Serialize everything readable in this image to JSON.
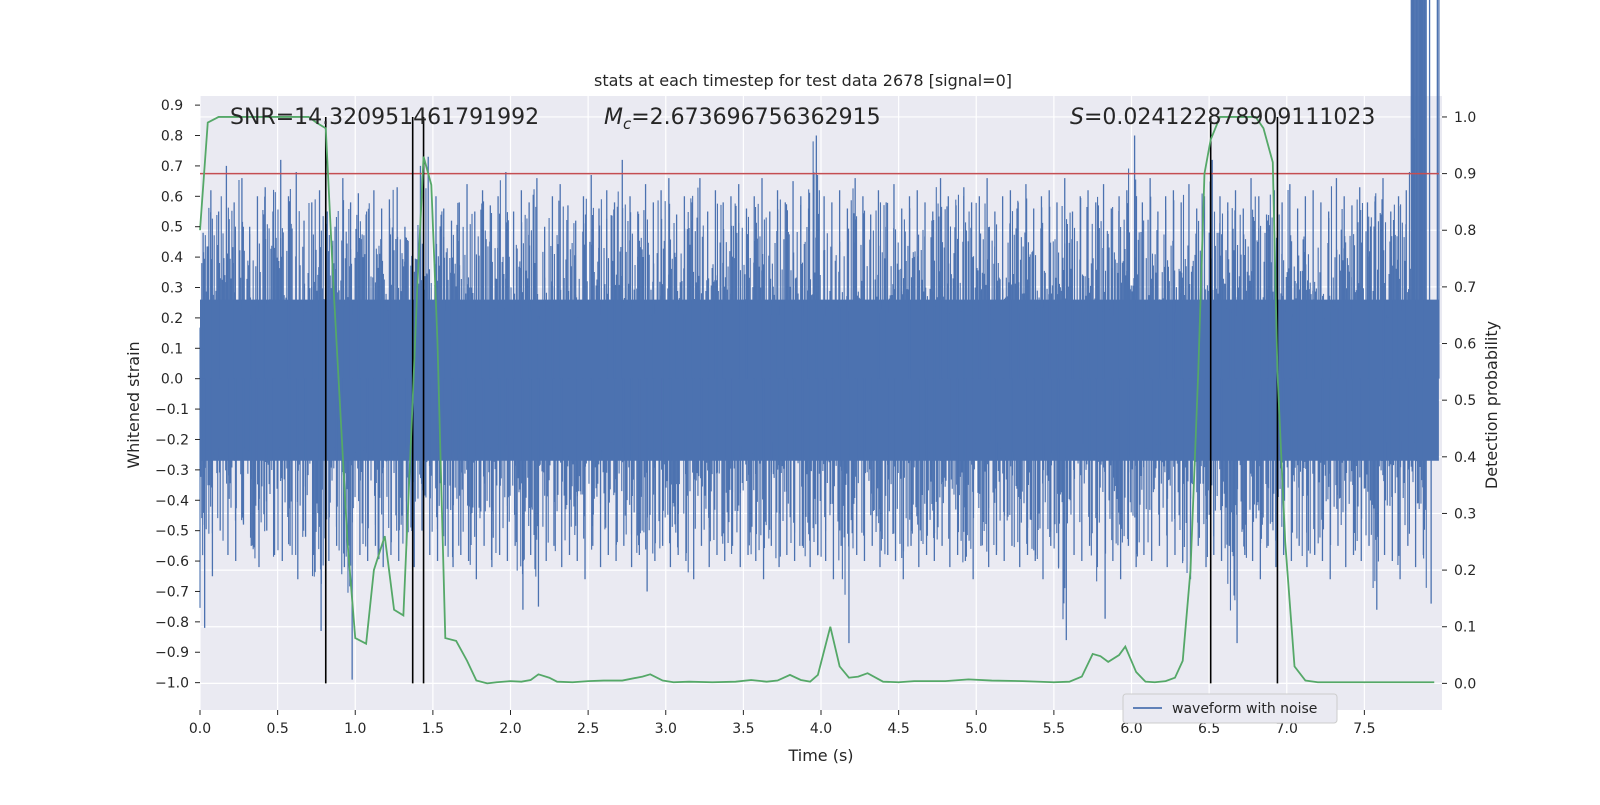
{
  "chart_data": {
    "type": "line",
    "title": "stats at each timestep for test data 2678 [signal=0]",
    "xlabel": "Time (s)",
    "ylabel": "Whitened strain",
    "y2label": "Detection probability",
    "xlim": [
      0.0,
      8.0
    ],
    "ylim": [
      -1.09,
      0.93
    ],
    "y2lim": [
      -0.047,
      1.037
    ],
    "xticks": [
      "0.0",
      "0.5",
      "1.0",
      "1.5",
      "2.0",
      "2.5",
      "3.0",
      "3.5",
      "4.0",
      "4.5",
      "5.0",
      "5.5",
      "6.0",
      "6.5",
      "7.0",
      "7.5"
    ],
    "yticks": [
      "0.9",
      "0.8",
      "0.7",
      "0.6",
      "0.5",
      "0.4",
      "0.3",
      "0.2",
      "0.1",
      "0.0",
      "-0.1",
      "-0.2",
      "-0.3",
      "-0.4",
      "-0.5",
      "-0.6",
      "-0.7",
      "-0.8",
      "-0.9",
      "-1.0"
    ],
    "y2ticks": [
      "1.0",
      "0.9",
      "0.8",
      "0.7",
      "0.6",
      "0.5",
      "0.4",
      "0.3",
      "0.2",
      "0.1",
      "0.0"
    ],
    "grid": true,
    "annotations": {
      "snr": "SNR=14.320951461791992",
      "mc_symbol": "M",
      "mc_sub": "c",
      "mc_value": "=2.673696756362915",
      "s_symbol": "S",
      "s_value": "=0.024122878909111023"
    },
    "threshold": 0.9,
    "vlines": [
      0.81,
      1.37,
      1.44,
      6.51,
      6.94
    ],
    "series": [
      {
        "name": "waveform with noise",
        "color": "#4c72b0",
        "envelope_x": [
          0.0,
          0.05,
          0.1,
          0.15,
          0.2,
          0.25,
          0.3,
          0.35,
          0.4,
          0.45,
          0.5,
          0.55,
          0.6,
          0.65,
          0.7,
          0.75,
          0.8,
          0.85,
          0.9,
          0.95,
          1.0,
          1.05,
          1.1,
          1.15,
          1.2,
          1.25,
          1.3,
          1.35,
          1.4,
          1.45,
          1.5,
          1.55,
          1.6,
          1.65,
          1.7,
          1.75,
          1.8,
          1.85,
          1.9,
          1.95,
          2.0,
          2.05,
          2.1,
          2.15,
          2.2,
          2.25,
          2.3,
          2.35,
          2.4,
          2.45,
          2.5,
          2.55,
          2.6,
          2.65,
          2.7,
          2.75,
          2.8,
          2.85,
          2.9,
          2.95,
          3.0,
          3.05,
          3.1,
          3.15,
          3.2,
          3.25,
          3.3,
          3.35,
          3.4,
          3.45,
          3.5,
          3.55,
          3.6,
          3.65,
          3.7,
          3.75,
          3.8,
          3.85,
          3.9,
          3.95,
          4.0,
          4.05,
          4.1,
          4.15,
          4.2,
          4.25,
          4.3,
          4.35,
          4.4,
          4.45,
          4.5,
          4.55,
          4.6,
          4.65,
          4.7,
          4.75,
          4.8,
          4.85,
          4.9,
          4.95,
          5.0,
          5.05,
          5.1,
          5.15,
          5.2,
          5.25,
          5.3,
          5.35,
          5.4,
          5.45,
          5.5,
          5.55,
          5.6,
          5.65,
          5.7,
          5.75,
          5.8,
          5.85,
          5.9,
          5.95,
          6.0,
          6.05,
          6.1,
          6.15,
          6.2,
          6.25,
          6.3,
          6.35,
          6.4,
          6.45,
          6.5,
          6.55,
          6.6,
          6.65,
          6.7,
          6.75,
          6.8,
          6.85,
          6.9,
          6.95,
          7.0,
          7.05,
          7.1,
          7.15,
          7.2,
          7.25,
          7.3,
          7.35,
          7.4,
          7.45,
          7.5,
          7.55,
          7.6,
          7.65,
          7.7,
          7.75,
          7.8,
          7.85,
          7.9,
          7.95,
          8.0
        ],
        "envelope_max": [
          0.48,
          0.62,
          0.55,
          0.7,
          0.58,
          0.66,
          0.5,
          0.6,
          0.63,
          0.55,
          0.72,
          0.6,
          0.68,
          0.52,
          0.58,
          0.62,
          0.55,
          0.5,
          0.66,
          0.58,
          0.61,
          0.54,
          0.62,
          0.56,
          0.59,
          0.63,
          0.5,
          0.58,
          0.7,
          0.73,
          0.6,
          0.56,
          0.52,
          0.58,
          0.64,
          0.55,
          0.62,
          0.57,
          0.6,
          0.68,
          0.55,
          0.62,
          0.58,
          0.66,
          0.5,
          0.6,
          0.64,
          0.57,
          0.52,
          0.6,
          0.67,
          0.56,
          0.62,
          0.58,
          0.72,
          0.6,
          0.55,
          0.64,
          0.58,
          0.62,
          0.66,
          0.54,
          0.6,
          0.58,
          0.66,
          0.55,
          0.62,
          0.58,
          0.6,
          0.64,
          0.56,
          0.6,
          0.66,
          0.55,
          0.62,
          0.58,
          0.65,
          0.6,
          0.56,
          0.8,
          0.6,
          0.58,
          0.62,
          0.56,
          0.66,
          0.6,
          0.54,
          0.62,
          0.58,
          0.64,
          0.56,
          0.6,
          0.62,
          0.58,
          0.55,
          0.66,
          0.6,
          0.57,
          0.63,
          0.58,
          0.6,
          0.66,
          0.55,
          0.6,
          0.62,
          0.58,
          0.64,
          0.56,
          0.6,
          0.62,
          0.58,
          0.66,
          0.55,
          0.6,
          0.62,
          0.58,
          0.64,
          0.56,
          0.6,
          0.62,
          0.8,
          0.58,
          0.66,
          0.55,
          0.6,
          0.62,
          0.58,
          0.64,
          0.56,
          0.6,
          0.72,
          0.6,
          0.58,
          0.62,
          0.56,
          0.66,
          0.6,
          0.54,
          0.62,
          0.58,
          0.64,
          0.56,
          0.6,
          0.62,
          0.58,
          0.55,
          0.66,
          0.6,
          0.57,
          0.63,
          0.58,
          0.6,
          0.66,
          0.55,
          0.6,
          0.62,
          0.79
        ],
        "envelope_min": [
          -0.82,
          -0.65,
          -0.5,
          -0.58,
          -0.6,
          -0.48,
          -0.55,
          -0.62,
          -0.5,
          -0.58,
          -0.6,
          -0.55,
          -0.66,
          -0.52,
          -0.58,
          -0.83,
          -0.6,
          -0.55,
          -0.62,
          -0.99,
          -0.58,
          -0.6,
          -0.55,
          -0.62,
          -0.58,
          -0.6,
          -0.55,
          -0.62,
          -0.5,
          -0.58,
          -0.6,
          -0.55,
          -0.62,
          -0.58,
          -0.6,
          -0.66,
          -0.55,
          -0.62,
          -0.58,
          -0.6,
          -0.55,
          -0.76,
          -0.58,
          -0.75,
          -0.6,
          -0.55,
          -0.62,
          -0.58,
          -0.6,
          -0.66,
          -0.55,
          -0.62,
          -0.58,
          -0.6,
          -0.55,
          -0.62,
          -0.58,
          -0.7,
          -0.6,
          -0.55,
          -0.62,
          -0.58,
          -0.6,
          -0.66,
          -0.55,
          -0.62,
          -0.58,
          -0.6,
          -0.55,
          -0.62,
          -0.58,
          -0.6,
          -0.66,
          -0.55,
          -0.62,
          -0.58,
          -0.6,
          -0.55,
          -0.62,
          -0.58,
          -0.6,
          -0.66,
          -0.55,
          -0.87,
          -0.58,
          -0.6,
          -0.55,
          -0.62,
          -0.58,
          -0.6,
          -0.66,
          -0.55,
          -0.62,
          -0.58,
          -0.6,
          -0.55,
          -0.62,
          -0.58,
          -0.6,
          -0.66,
          -0.55,
          -0.62,
          -0.58,
          -0.6,
          -0.55,
          -0.62,
          -0.58,
          -0.6,
          -0.66,
          -0.55,
          -0.62,
          -0.86,
          -0.58,
          -0.6,
          -0.55,
          -0.62,
          -0.79,
          -0.6,
          -0.66,
          -0.55,
          -0.62,
          -0.58,
          -0.6,
          -0.55,
          -0.62,
          -0.58,
          -0.6,
          -0.66,
          -0.55,
          -0.62,
          -0.58,
          -0.6,
          -0.55,
          -0.87,
          -0.58,
          -0.6,
          -0.66,
          -0.55,
          -0.62,
          -0.58,
          -0.6,
          -0.55,
          -0.62,
          -0.58,
          -0.6,
          -0.66,
          -0.55,
          -0.62,
          -0.58,
          -0.6,
          -0.55,
          -0.76,
          -0.58,
          -0.6,
          -0.66,
          -0.55,
          -0.62,
          -0.58,
          -0.74
        ]
      },
      {
        "name": "",
        "color": "#55a868",
        "axis": "y2",
        "x": [
          0.0,
          0.05,
          0.12,
          0.2,
          0.4,
          0.55,
          0.7,
          0.75,
          0.81,
          0.86,
          0.9,
          0.95,
          1.0,
          1.07,
          1.12,
          1.19,
          1.25,
          1.31,
          1.37,
          1.4,
          1.44,
          1.49,
          1.53,
          1.58,
          1.65,
          1.72,
          1.78,
          1.85,
          1.91,
          2.0,
          2.07,
          2.13,
          2.18,
          2.25,
          2.3,
          2.4,
          2.5,
          2.6,
          2.72,
          2.85,
          2.9,
          2.98,
          3.05,
          3.15,
          3.3,
          3.45,
          3.55,
          3.65,
          3.72,
          3.8,
          3.87,
          3.93,
          3.98,
          4.06,
          4.12,
          4.18,
          4.24,
          4.3,
          4.4,
          4.5,
          4.6,
          4.8,
          4.95,
          5.1,
          5.3,
          5.5,
          5.6,
          5.68,
          5.75,
          5.8,
          5.85,
          5.92,
          5.96,
          6.03,
          6.09,
          6.15,
          6.22,
          6.28,
          6.33,
          6.38,
          6.43,
          6.47,
          6.51,
          6.57,
          6.64,
          6.72,
          6.8,
          6.85,
          6.91,
          6.94,
          6.99,
          7.05,
          7.12,
          7.2,
          7.4,
          7.6,
          7.8,
          7.95
        ],
        "y": [
          0.8,
          0.99,
          1.0,
          1.0,
          1.0,
          1.0,
          1.0,
          0.99,
          0.98,
          0.7,
          0.5,
          0.25,
          0.08,
          0.07,
          0.2,
          0.26,
          0.13,
          0.12,
          0.5,
          0.7,
          0.93,
          0.88,
          0.6,
          0.08,
          0.075,
          0.04,
          0.005,
          0.0,
          0.002,
          0.004,
          0.003,
          0.006,
          0.016,
          0.01,
          0.003,
          0.002,
          0.004,
          0.005,
          0.005,
          0.012,
          0.016,
          0.005,
          0.002,
          0.003,
          0.002,
          0.003,
          0.006,
          0.003,
          0.005,
          0.015,
          0.006,
          0.003,
          0.015,
          0.1,
          0.03,
          0.01,
          0.012,
          0.018,
          0.003,
          0.002,
          0.004,
          0.004,
          0.007,
          0.005,
          0.004,
          0.002,
          0.003,
          0.012,
          0.052,
          0.048,
          0.038,
          0.05,
          0.065,
          0.02,
          0.003,
          0.002,
          0.004,
          0.01,
          0.04,
          0.2,
          0.55,
          0.9,
          0.96,
          1.0,
          1.0,
          1.0,
          1.0,
          0.98,
          0.92,
          0.55,
          0.25,
          0.03,
          0.005,
          0.002,
          0.002,
          0.002,
          0.002,
          0.002
        ]
      }
    ]
  }
}
